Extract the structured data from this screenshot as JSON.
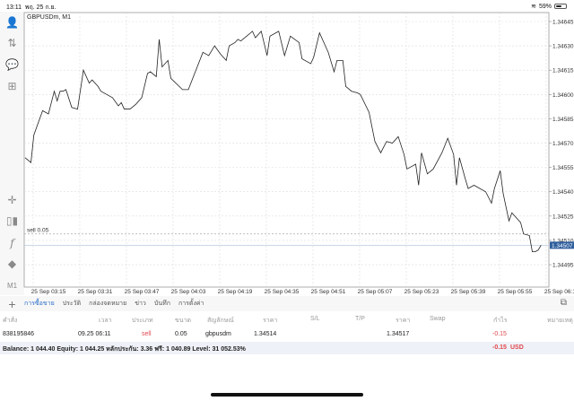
{
  "status": {
    "time": "13:11",
    "date": "พฤ. 25 ก.ย.",
    "battery": "59%",
    "battery_level": 0.59
  },
  "chart": {
    "title": "GBPUSDm, M1",
    "sell_label": "sell 0.05",
    "sell_price": 1.34514,
    "current_price": "1.34507",
    "current_value": 1.34507,
    "y_ticks": [
      "1.34645",
      "1.34630",
      "1.34615",
      "1.34600",
      "1.34585",
      "1.34570",
      "1.34555",
      "1.34540",
      "1.34525",
      "1.34510",
      "1.34495"
    ],
    "x_ticks": [
      "25 Sep 03:15",
      "25 Sep 03:31",
      "25 Sep 03:47",
      "25 Sep 04:03",
      "25 Sep 04:19",
      "25 Sep 04:35",
      "25 Sep 04:51",
      "25 Sep 05:07",
      "25 Sep 05:23",
      "25 Sep 05:39",
      "25 Sep 05:55",
      "25 Sep 06:11"
    ],
    "x_unit": "minutes since 03:15",
    "series": [
      [
        -8,
        1.34561
      ],
      [
        -6,
        1.34558
      ],
      [
        -5,
        1.34575
      ],
      [
        -2,
        1.3459
      ],
      [
        0,
        1.34588
      ],
      [
        2,
        1.34602
      ],
      [
        3,
        1.34596
      ],
      [
        4,
        1.34602
      ],
      [
        5,
        1.34602
      ],
      [
        6,
        1.34603
      ],
      [
        8,
        1.34592
      ],
      [
        10,
        1.34591
      ],
      [
        11,
        1.34603
      ],
      [
        12,
        1.34615
      ],
      [
        14,
        1.34607
      ],
      [
        15,
        1.34609
      ],
      [
        17,
        1.34605
      ],
      [
        18,
        1.34602
      ],
      [
        20,
        1.346
      ],
      [
        22,
        1.34598
      ],
      [
        24,
        1.34593
      ],
      [
        25,
        1.34595
      ],
      [
        26,
        1.34591
      ],
      [
        28,
        1.34591
      ],
      [
        30,
        1.34594
      ],
      [
        32,
        1.34598
      ],
      [
        34,
        1.34613
      ],
      [
        35,
        1.34614
      ],
      [
        37,
        1.34611
      ],
      [
        38,
        1.34634
      ],
      [
        39,
        1.34617
      ],
      [
        41,
        1.34621
      ],
      [
        42,
        1.3461
      ],
      [
        46,
        1.34603
      ],
      [
        48,
        1.34603
      ],
      [
        53,
        1.34626
      ],
      [
        55,
        1.34624
      ],
      [
        57,
        1.3463
      ],
      [
        59,
        1.34625
      ],
      [
        61,
        1.34621
      ],
      [
        62,
        1.3463
      ],
      [
        64,
        1.34632
      ],
      [
        65,
        1.34634
      ],
      [
        66,
        1.34633
      ],
      [
        68,
        1.34636
      ],
      [
        70,
        1.34639
      ],
      [
        71,
        1.34635
      ],
      [
        73,
        1.34639
      ],
      [
        75,
        1.34624
      ],
      [
        76,
        1.34636
      ],
      [
        79,
        1.34639
      ],
      [
        81,
        1.34624
      ],
      [
        83,
        1.34636
      ],
      [
        86,
        1.34632
      ],
      [
        87,
        1.34622
      ],
      [
        90,
        1.34619
      ],
      [
        91,
        1.34623
      ],
      [
        93,
        1.34638
      ],
      [
        95,
        1.3463
      ],
      [
        96,
        1.34626
      ],
      [
        98,
        1.34614
      ],
      [
        99,
        1.34621
      ],
      [
        101,
        1.34621
      ],
      [
        102,
        1.34605
      ],
      [
        104,
        1.34602
      ],
      [
        106,
        1.34601
      ],
      [
        107,
        1.346
      ],
      [
        110,
        1.34589
      ],
      [
        112,
        1.34571
      ],
      [
        114,
        1.34564
      ],
      [
        116,
        1.34571
      ],
      [
        118,
        1.3457
      ],
      [
        120,
        1.34574
      ],
      [
        122,
        1.34563
      ],
      [
        123,
        1.34554
      ],
      [
        126,
        1.34557
      ],
      [
        127,
        1.34544
      ],
      [
        128,
        1.34564
      ],
      [
        130,
        1.34551
      ],
      [
        132,
        1.34554
      ],
      [
        135,
        1.34564
      ],
      [
        137,
        1.34573
      ],
      [
        139,
        1.34563
      ],
      [
        140,
        1.34544
      ],
      [
        141,
        1.34561
      ],
      [
        143,
        1.34548
      ],
      [
        144,
        1.34542
      ],
      [
        146,
        1.34544
      ],
      [
        150,
        1.3454
      ],
      [
        152,
        1.34533
      ],
      [
        153,
        1.34542
      ],
      [
        155,
        1.34553
      ],
      [
        156,
        1.34539
      ],
      [
        158,
        1.34522
      ],
      [
        159,
        1.34527
      ],
      [
        162,
        1.34521
      ],
      [
        163,
        1.34514
      ],
      [
        165,
        1.34513
      ],
      [
        166,
        1.34503
      ],
      [
        167,
        1.34503
      ],
      [
        168,
        1.34504
      ],
      [
        169,
        1.34507
      ]
    ]
  },
  "toolbar": {
    "timeframe": "M1",
    "icons": [
      "account-icon",
      "trade-arrows-icon",
      "chat-icon",
      "new-document-icon",
      "crosshair-icon",
      "indicators-icon",
      "function-icon",
      "objects-icon"
    ]
  },
  "tabs": [
    "การซื้อขาย",
    "ประวัติ",
    "กล่องจดหมาย",
    "ข่าว",
    "บันทึก",
    "การตั้งค่า"
  ],
  "table": {
    "headers": [
      "คำสั่ง",
      "เวลา",
      "ประเภท",
      "ขนาด",
      "สัญลักษณ์",
      "ราคา",
      "S/L",
      "T/P",
      "ราคา",
      "Swap",
      "กำไร",
      "หมายเหตุ"
    ],
    "rows": [
      {
        "order": "838195846",
        "time": "09.25 06:11",
        "type": "sell",
        "volume": "0.05",
        "symbol": "gbpusdm",
        "price": "1.34514",
        "sl": "",
        "tp": "",
        "current": "1.34517",
        "swap": "",
        "profit": "-0.15",
        "comment": ""
      }
    ]
  },
  "summary": {
    "text": "Balance: 1 044.40 Equity: 1 044.25 หลักประกัน: 3.36 ฟรี: 1 040.89 Level: 31 052.53%",
    "profit": "-0.15",
    "currency": "USD"
  },
  "colors": {
    "accent": "#2c6fc9",
    "loss": "#e0474c",
    "price_tag": "#2f5f9e"
  }
}
